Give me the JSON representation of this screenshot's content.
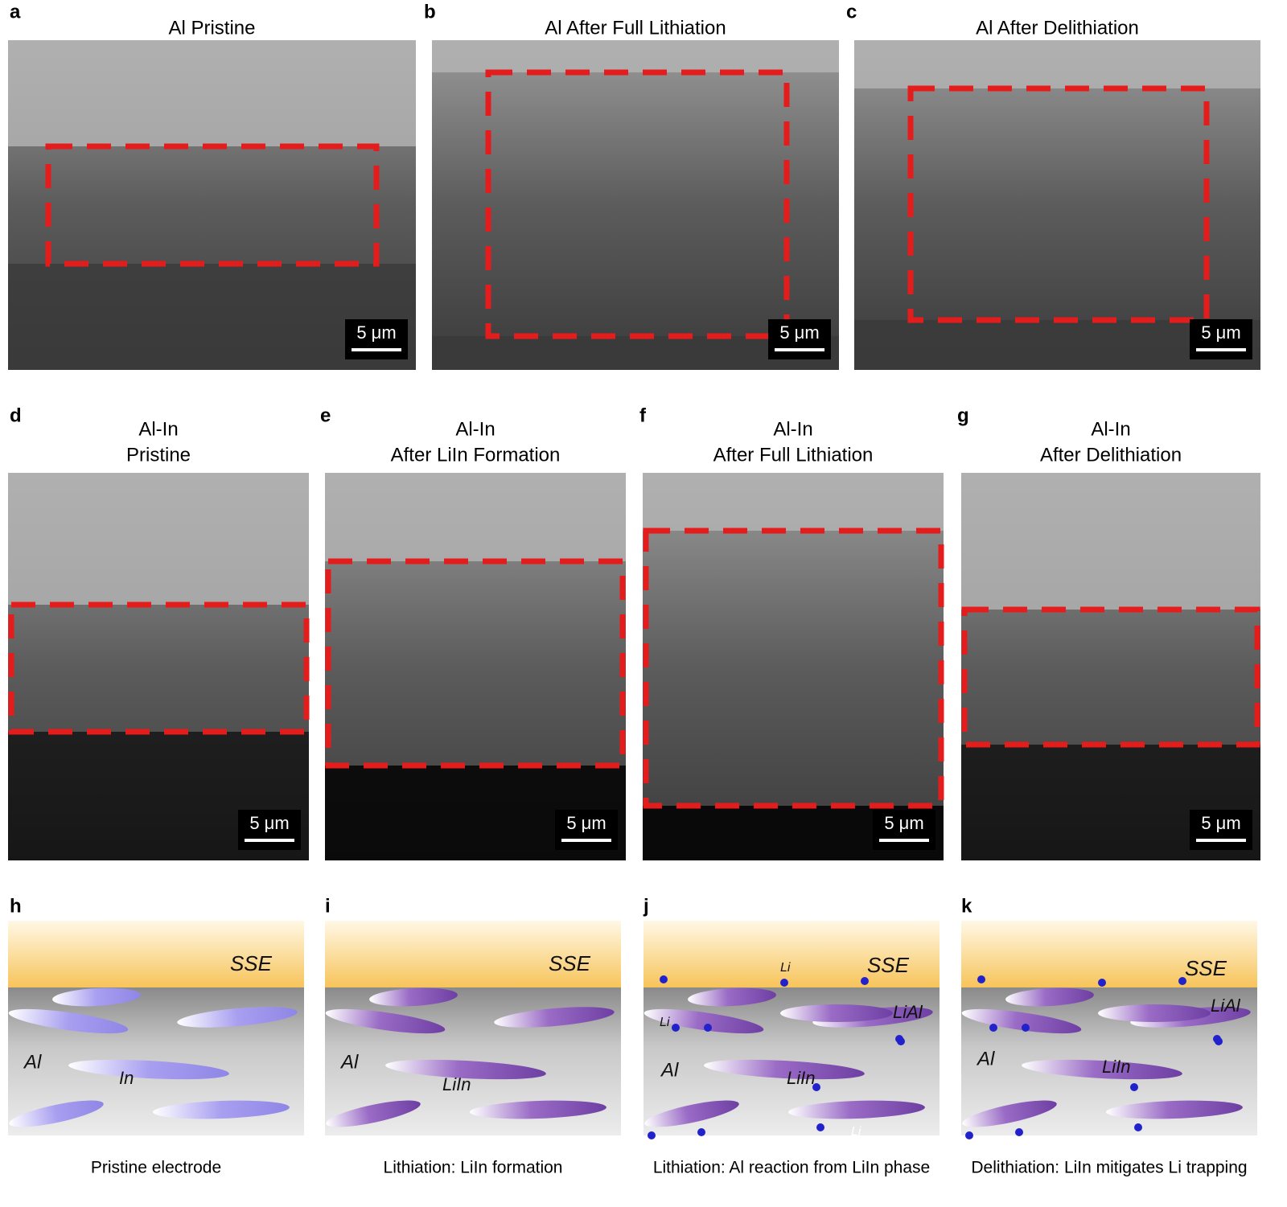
{
  "panels": [
    {
      "letter": "a",
      "title": [
        "Al Pristine"
      ],
      "scale_bar": "5 μm"
    },
    {
      "letter": "b",
      "title": [
        "Al After Full Lithiation"
      ],
      "scale_bar": "5 μm"
    },
    {
      "letter": "c",
      "title": [
        "Al After Delithiation"
      ],
      "scale_bar": "5 μm"
    },
    {
      "letter": "d",
      "title": [
        "Al-In",
        "Pristine"
      ],
      "scale_bar": "5 μm"
    },
    {
      "letter": "e",
      "title": [
        "Al-In",
        "After LiIn Formation"
      ],
      "scale_bar": "5 μm"
    },
    {
      "letter": "f",
      "title": [
        "Al-In",
        "After Full Lithiation"
      ],
      "scale_bar": "5 μm"
    },
    {
      "letter": "g",
      "title": [
        "Al-In",
        "After Delithiation"
      ],
      "scale_bar": "5 μm"
    }
  ],
  "schematics": [
    {
      "letter": "h",
      "labels": [
        "SSE",
        "Al",
        "In"
      ],
      "caption": "Pristine electrode"
    },
    {
      "letter": "i",
      "labels": [
        "SSE",
        "Al",
        "LiIn"
      ],
      "caption": "Lithiation: LiIn formation"
    },
    {
      "letter": "j",
      "labels": [
        "SSE",
        "Li",
        "Li",
        "LiAl",
        "Al",
        "LiIn",
        "Li"
      ],
      "caption": "Lithiation: Al reaction from LiIn phase"
    },
    {
      "letter": "k",
      "labels": [
        "SSE",
        "LiAl",
        "Al",
        "LiIn"
      ],
      "caption": "Delithiation: LiIn mitigates Li trapping"
    }
  ]
}
